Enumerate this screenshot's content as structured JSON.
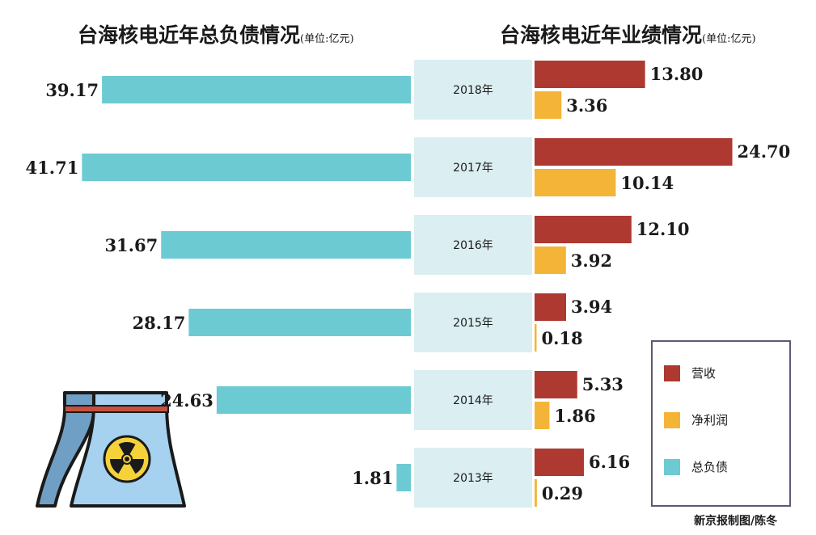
{
  "titles": {
    "left": "台海核电近年总负债情况",
    "left_unit": "(单位:亿元)",
    "right": "台海核电近年业绩情况",
    "right_unit": "(单位:亿元)"
  },
  "chart_data": {
    "type": "bar",
    "orientation": "horizontal",
    "categories": [
      "2018年",
      "2017年",
      "2016年",
      "2015年",
      "2014年",
      "2013年"
    ],
    "series": [
      {
        "name": "营收",
        "values": [
          13.8,
          24.7,
          12.1,
          3.94,
          5.33,
          6.16
        ]
      },
      {
        "name": "净利润",
        "values": [
          3.36,
          10.14,
          3.92,
          0.18,
          1.86,
          0.29
        ]
      },
      {
        "name": "总负债",
        "values": [
          39.17,
          41.71,
          31.67,
          28.17,
          24.63,
          1.81
        ]
      }
    ],
    "colors": {
      "营收": "#ad3930",
      "净利润": "#f4b437",
      "总负债": "#6ccad3",
      "year_band": "#dbeef1"
    },
    "legend_position": "bottom-right"
  },
  "credit": "新京报制图/陈冬",
  "icon": "nuclear-cooling-tower-icon"
}
